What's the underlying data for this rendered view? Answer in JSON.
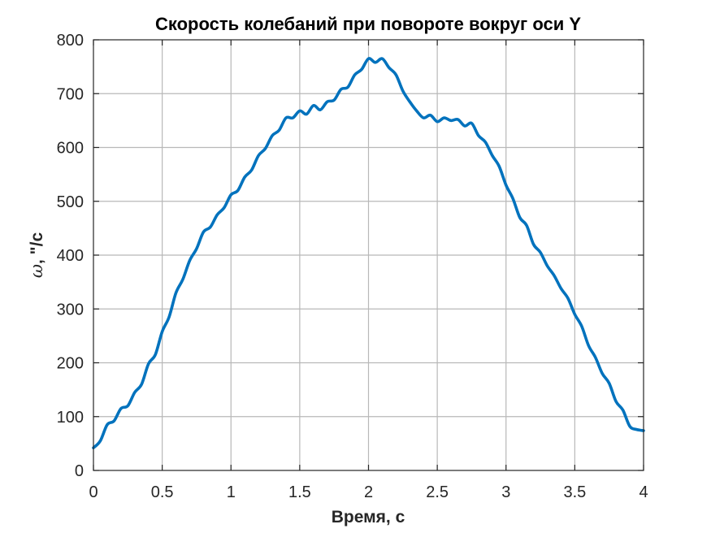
{
  "chart_data": {
    "type": "line",
    "title": "Скорость колебаний при повороте вокруг оси Y",
    "xlabel": "Время, с",
    "ylabel_symbol": "ω",
    "ylabel_units": ", \"/с",
    "xlim": [
      0,
      4
    ],
    "ylim": [
      0,
      800
    ],
    "xticks": [
      0,
      0.5,
      1,
      1.5,
      2,
      2.5,
      3,
      3.5,
      4
    ],
    "xtick_labels": [
      "0",
      "0.5",
      "1",
      "1.5",
      "2",
      "2.5",
      "3",
      "3.5",
      "4"
    ],
    "yticks": [
      0,
      100,
      200,
      300,
      400,
      500,
      600,
      700,
      800
    ],
    "ytick_labels": [
      "0",
      "100",
      "200",
      "300",
      "400",
      "500",
      "600",
      "700",
      "800"
    ],
    "grid": true,
    "series": [
      {
        "name": "ω",
        "color": "#0072BD",
        "x": [
          0,
          0.05,
          0.1,
          0.15,
          0.2,
          0.25,
          0.3,
          0.35,
          0.4,
          0.45,
          0.5,
          0.55,
          0.6,
          0.65,
          0.7,
          0.75,
          0.8,
          0.85,
          0.9,
          0.95,
          1.0,
          1.05,
          1.1,
          1.15,
          1.2,
          1.25,
          1.3,
          1.35,
          1.4,
          1.45,
          1.5,
          1.55,
          1.6,
          1.65,
          1.7,
          1.75,
          1.8,
          1.85,
          1.9,
          1.95,
          2.0,
          2.05,
          2.1,
          2.15,
          2.2,
          2.25,
          2.3,
          2.35,
          2.4,
          2.45,
          2.5,
          2.55,
          2.6,
          2.65,
          2.7,
          2.75,
          2.8,
          2.85,
          2.9,
          2.95,
          3.0,
          3.05,
          3.1,
          3.15,
          3.2,
          3.25,
          3.3,
          3.35,
          3.4,
          3.45,
          3.5,
          3.55,
          3.6,
          3.65,
          3.7,
          3.75,
          3.8,
          3.85,
          3.9,
          3.95,
          4.0
        ],
        "y": [
          42,
          55,
          85,
          92,
          115,
          120,
          145,
          160,
          198,
          215,
          258,
          285,
          330,
          355,
          390,
          412,
          443,
          452,
          475,
          488,
          512,
          520,
          545,
          558,
          585,
          598,
          622,
          632,
          655,
          655,
          668,
          662,
          678,
          670,
          685,
          688,
          708,
          712,
          735,
          745,
          765,
          758,
          765,
          748,
          735,
          705,
          685,
          668,
          655,
          660,
          648,
          655,
          650,
          652,
          640,
          645,
          622,
          610,
          585,
          565,
          530,
          505,
          470,
          455,
          420,
          405,
          380,
          362,
          338,
          320,
          290,
          268,
          232,
          210,
          180,
          162,
          128,
          112,
          82,
          76,
          74
        ]
      }
    ]
  }
}
